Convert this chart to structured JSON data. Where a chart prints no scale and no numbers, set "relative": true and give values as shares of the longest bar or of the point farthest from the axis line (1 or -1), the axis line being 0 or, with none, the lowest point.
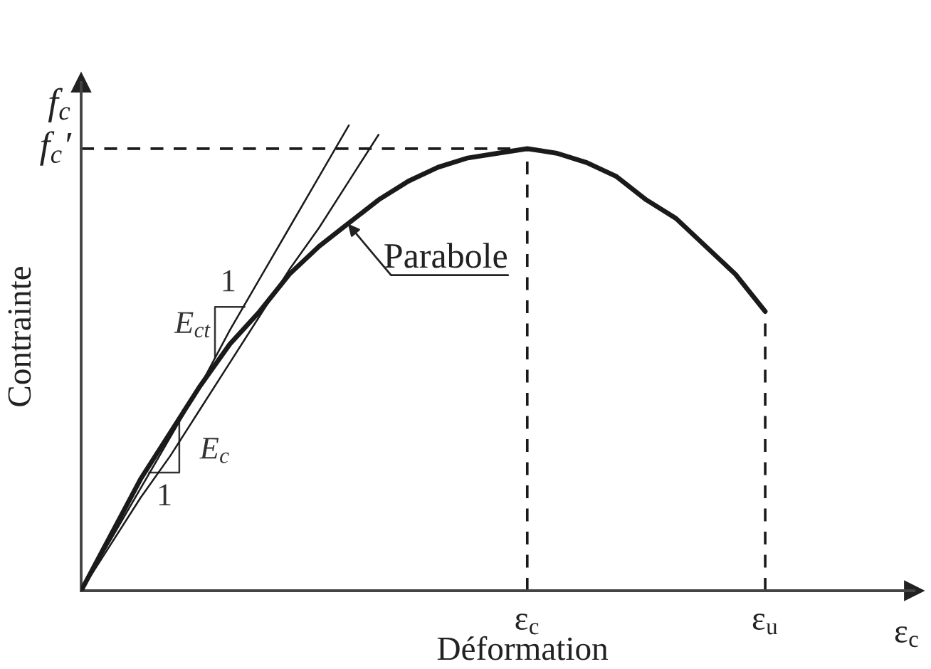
{
  "chart_data": {
    "type": "line",
    "relative": true,
    "xlabel": "Déformation",
    "ylabel": "Contrainte",
    "categories": [
      null,
      null,
      null,
      null,
      null,
      null,
      null,
      null,
      null,
      null,
      null,
      null,
      null,
      null,
      null,
      "ε$_{c}$",
      null,
      null,
      null,
      null,
      null,
      null,
      null,
      "ε$_{u}$",
      null,
      null,
      null,
      null,
      null
    ],
    "series": [
      {
        "name": "Parabole",
        "color": "#1a1a1a",
        "values": [
          0,
          0.12,
          0.24,
          0.34,
          0.44,
          0.53,
          0.6,
          0.68,
          0.74,
          0.79,
          0.84,
          0.88,
          0.91,
          0.93,
          0.94,
          0.95,
          0.94,
          0.92,
          0.89,
          0.84,
          0.8,
          0.74,
          0.68,
          0.6,
          null,
          null,
          null,
          null,
          null
        ]
      },
      {
        "color": "#1a1a1a",
        "values": [
          0,
          0.11,
          0.22,
          0.33,
          0.44,
          0.56,
          0.67,
          0.78,
          0.89,
          1,
          null,
          null,
          null,
          null,
          null,
          null,
          null,
          null,
          null,
          null,
          null,
          null,
          null,
          null,
          null,
          null,
          null,
          null,
          null
        ]
      },
      {
        "color": "#1a1a1a",
        "values": [
          0,
          0.1,
          0.2,
          0.29,
          0.39,
          0.49,
          0.59,
          0.69,
          0.78,
          0.88,
          0.98,
          null,
          null,
          null,
          null,
          null,
          null,
          null,
          null,
          null,
          null,
          null,
          null,
          null,
          null,
          null,
          null,
          null,
          null
        ]
      }
    ],
    "ref_lines": [
      {
        "axis": "y",
        "value": 0.95,
        "label": "f$_{c}$′",
        "line_style": "dashed",
        "color": "#1a1a1a"
      },
      {
        "axis": "x",
        "value": "ε$_{c}$",
        "line_style": "dashed",
        "color": "#1a1a1a"
      },
      {
        "axis": "x",
        "value": "ε$_{u}$",
        "line_style": "dashed",
        "color": "#1a1a1a"
      }
    ],
    "annotations": [
      "1",
      "E$_{ct}$",
      "E$_{c}$",
      "1",
      "f$_{c}$",
      "ε$_{c}$"
    ],
    "marker": "none",
    "line_style": "solid"
  }
}
